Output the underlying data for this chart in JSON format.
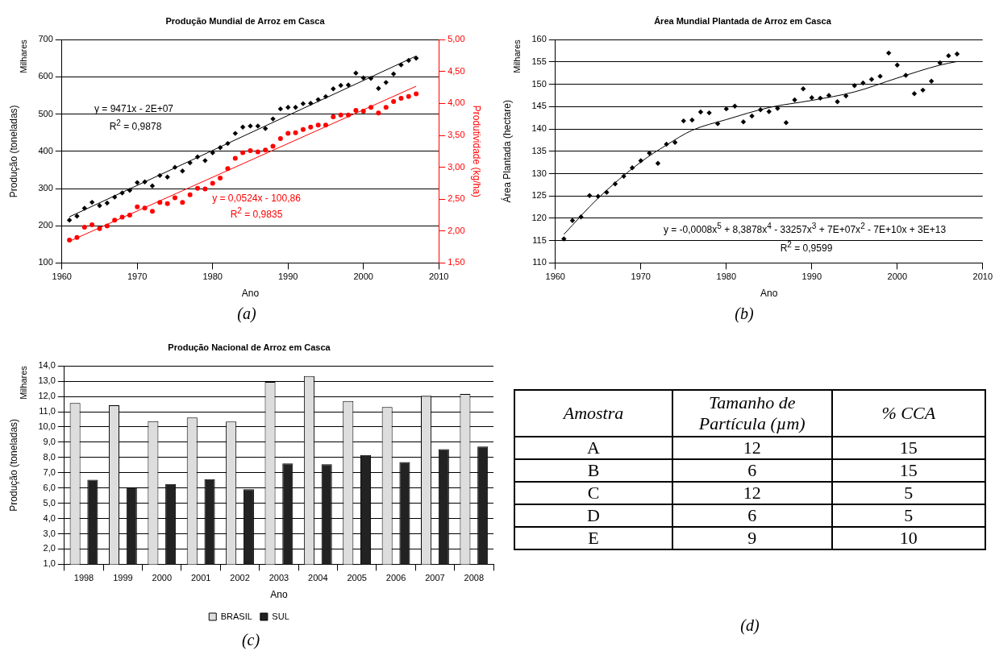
{
  "chart_data": [
    {
      "type": "scatter",
      "title": "Produção Mundial de Arroz em Casca",
      "xlabel": "Ano",
      "ylabel": "Produção (toneladas)",
      "y2label": "Produtividade (kg/ha)",
      "xlim": [
        1960,
        2010
      ],
      "xticks": [
        1960,
        1970,
        1980,
        1990,
        2000,
        2010
      ],
      "ylim": [
        100,
        700
      ],
      "yticks": [
        100,
        200,
        300,
        400,
        500,
        600,
        700
      ],
      "y2lim": [
        1.5,
        5
      ],
      "y2ticks": [
        {
          "value": 1.5,
          "label": "1,50"
        },
        {
          "value": 2,
          "label": "2,00"
        },
        {
          "value": 2.5,
          "label": "2,50"
        },
        {
          "value": 3,
          "label": "3,00"
        },
        {
          "value": 3.5,
          "label": "3,50"
        },
        {
          "value": 4,
          "label": "4,00"
        },
        {
          "value": 4.5,
          "label": "4,50"
        },
        {
          "value": 5,
          "label": "5,00"
        }
      ],
      "grid": "y",
      "legend": false,
      "x": [
        1961,
        1962,
        1963,
        1964,
        1965,
        1966,
        1967,
        1968,
        1969,
        1970,
        1971,
        1972,
        1973,
        1974,
        1975,
        1976,
        1977,
        1978,
        1979,
        1980,
        1981,
        1982,
        1983,
        1984,
        1985,
        1986,
        1987,
        1988,
        1989,
        1990,
        1991,
        1992,
        1993,
        1994,
        1995,
        1996,
        1997,
        1998,
        1999,
        2000,
        2001,
        2002,
        2003,
        2004,
        2005,
        2006,
        2007
      ],
      "series": [
        {
          "type": "scatter",
          "color": "#000000",
          "marker": "diamond",
          "values": [
            215,
            226,
            247,
            263,
            254,
            261,
            277,
            288,
            295,
            316,
            318,
            307,
            335,
            331,
            357,
            347,
            369,
            385,
            375,
            396,
            410,
            421,
            448,
            465,
            468,
            468,
            461,
            487,
            514,
            518,
            518,
            528,
            529,
            539,
            547,
            568,
            577,
            578,
            610,
            597,
            596,
            569,
            585,
            608,
            632,
            644,
            650
          ]
        },
        {
          "type": "scatter",
          "color": "#ff0000",
          "marker": "circle",
          "axis": "y2",
          "values": [
            1.86,
            1.9,
            2.06,
            2.1,
            2.04,
            2.08,
            2.17,
            2.22,
            2.25,
            2.38,
            2.36,
            2.31,
            2.45,
            2.43,
            2.52,
            2.45,
            2.57,
            2.67,
            2.66,
            2.75,
            2.83,
            2.98,
            3.14,
            3.23,
            3.26,
            3.24,
            3.27,
            3.33,
            3.45,
            3.53,
            3.54,
            3.59,
            3.63,
            3.66,
            3.66,
            3.79,
            3.82,
            3.82,
            3.89,
            3.88,
            3.94,
            3.85,
            3.94,
            4.03,
            4.08,
            4.11,
            4.15
          ]
        },
        {
          "type": "line",
          "color": "#000000",
          "marker": "none",
          "x": [
            1961,
            2007
          ],
          "values": [
            224,
            656
          ]
        },
        {
          "type": "line",
          "color": "#ff0000",
          "marker": "none",
          "axis": "y2",
          "x": [
            1961,
            2007
          ],
          "values": [
            1.84,
            4.27
          ]
        }
      ],
      "annotations": [
        "Milhares",
        "(a)",
        "y = 9471x - 2E+07",
        "R$^{2}$ = 0,9878",
        "y = 0,0524x - 100,86",
        "R$^{2}$ = 0,9835"
      ]
    },
    {
      "type": "scatter",
      "title": "Área Mundial Plantada de Arroz em Casca",
      "xlabel": "Ano",
      "ylabel": "Área Plantada (hectare)",
      "xlim": [
        1960,
        2010
      ],
      "xticks": [
        1960,
        1970,
        1980,
        1990,
        2000,
        2010
      ],
      "ylim": [
        110,
        160
      ],
      "yticks": [
        110,
        115,
        120,
        125,
        130,
        135,
        140,
        145,
        150,
        155,
        160
      ],
      "grid": "y",
      "legend": false,
      "x": [
        1961,
        1962,
        1963,
        1964,
        1965,
        1966,
        1967,
        1968,
        1969,
        1970,
        1971,
        1972,
        1973,
        1974,
        1975,
        1976,
        1977,
        1978,
        1979,
        1980,
        1981,
        1982,
        1983,
        1984,
        1985,
        1986,
        1987,
        1988,
        1989,
        1990,
        1991,
        1992,
        1993,
        1994,
        1995,
        1996,
        1997,
        1998,
        1999,
        2000,
        2001,
        2002,
        2003,
        2004,
        2005,
        2006,
        2007
      ],
      "series": [
        {
          "type": "scatter",
          "color": "#000000",
          "marker": "diamond",
          "values": [
            115.4,
            119.5,
            120.3,
            125.1,
            124.9,
            125.8,
            127.7,
            129.4,
            131.3,
            132.9,
            134.6,
            132.3,
            136.6,
            137,
            141.8,
            142,
            143.8,
            143.6,
            141.2,
            144.5,
            145.1,
            141.6,
            142.9,
            144.3,
            143.9,
            144.6,
            141.4,
            146.5,
            149,
            147,
            146.9,
            147.5,
            146.1,
            147.4,
            149.7,
            150.3,
            151.1,
            151.8,
            157,
            154.3,
            152,
            147.9,
            148.7,
            150.7,
            154.8,
            156.4,
            156.8
          ]
        },
        {
          "type": "line",
          "color": "#000000",
          "marker": "none",
          "x": [
            1961,
            1965,
            1970,
            1973,
            1976,
            1980,
            1985,
            1990,
            1995,
            2000,
            2005,
            2007
          ],
          "values": [
            116.4,
            124.5,
            132.6,
            136.4,
            139.7,
            142.1,
            144.8,
            146.4,
            148.3,
            151.4,
            154.3,
            155.1
          ]
        }
      ],
      "annotations": [
        "Milhares",
        "(b)",
        "y = -0,0008x$^{5}$ + 8,3878x$^{4}$ - 33257x$^{3}$ + 7E+07x$^{2}$ - 7E+10x + 3E+13",
        "R$^{2}$ = 0,9599"
      ]
    },
    {
      "type": "bar",
      "title": "Produção Nacional de Arroz em Casca",
      "xlabel": "Ano",
      "ylabel": "Produção (toneladas)",
      "categories": [
        "1998",
        "1999",
        "2000",
        "2001",
        "2002",
        "2003",
        "2004",
        "2005",
        "2006",
        "2007",
        "2008"
      ],
      "ylim": [
        1,
        14
      ],
      "yticks": [
        {
          "value": 1,
          "label": "1,0"
        },
        {
          "value": 2,
          "label": "2,0"
        },
        {
          "value": 3,
          "label": "3,0"
        },
        {
          "value": 4,
          "label": "4,0"
        },
        {
          "value": 5,
          "label": "5,0"
        },
        {
          "value": 6,
          "label": "6,0"
        },
        {
          "value": 7,
          "label": "7,0"
        },
        {
          "value": 8,
          "label": "8,0"
        },
        {
          "value": 9,
          "label": "9,0"
        },
        {
          "value": 10,
          "label": "10,0"
        },
        {
          "value": 11,
          "label": "11,0"
        },
        {
          "value": 12,
          "label": "12,0"
        },
        {
          "value": 13,
          "label": "13,0"
        },
        {
          "value": 14,
          "label": "14,0"
        }
      ],
      "grid": "y",
      "legend": "bottom",
      "series": [
        {
          "name": "BRASIL",
          "color": "#dddddd",
          "values": [
            11.57,
            11.42,
            10.38,
            10.62,
            10.36,
            12.96,
            13.34,
            11.7,
            11.31,
            12.05,
            12.16
          ]
        },
        {
          "name": "SUL",
          "color": "#222222",
          "values": [
            6.54,
            6.05,
            6.26,
            6.58,
            5.92,
            7.61,
            7.55,
            8.16,
            7.7,
            8.55,
            8.72
          ]
        }
      ],
      "annotations": [
        "Milhares",
        "(c)"
      ]
    },
    {
      "type": "other",
      "categories": [
        "Amostra",
        "Tamanho de Partícula (µm)",
        "% CCA"
      ],
      "cell_labels": [
        [
          "A",
          "12",
          "15"
        ],
        [
          "B",
          "6",
          "15"
        ],
        [
          "C",
          "12",
          "5"
        ],
        [
          "D",
          "6",
          "5"
        ],
        [
          "E",
          "9",
          "10"
        ]
      ],
      "annotations": [
        "(d)"
      ]
    }
  ]
}
